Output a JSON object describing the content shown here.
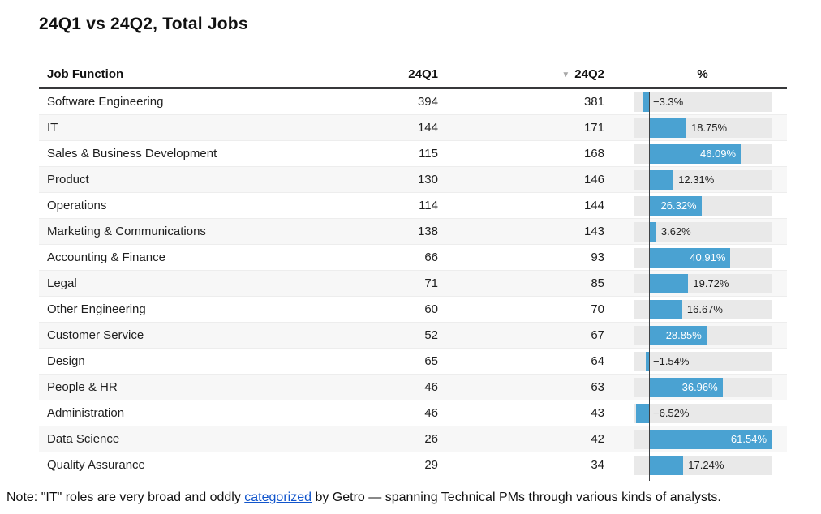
{
  "chart_data": {
    "type": "table",
    "title": "24Q1 vs 24Q2, Total Jobs",
    "columns": [
      "Job Function",
      "24Q1",
      "24Q2",
      "%"
    ],
    "sort": {
      "column": "24Q2",
      "direction": "desc",
      "icon": "▼"
    },
    "bar_column": {
      "axis_value": 0,
      "value_range": [
        -7.8,
        61.54
      ],
      "bar_color": "#4aa2d2",
      "track_color": "#e9e9e9",
      "description": "horizontal bar of % change, negative bars extend left of zero axis"
    },
    "rows": [
      {
        "job_function": "Software Engineering",
        "q1": 394,
        "q2": 381,
        "pct_change": -3.3,
        "pct_label": "−3.3%"
      },
      {
        "job_function": "IT",
        "q1": 144,
        "q2": 171,
        "pct_change": 18.75,
        "pct_label": "18.75%"
      },
      {
        "job_function": "Sales & Business Development",
        "q1": 115,
        "q2": 168,
        "pct_change": 46.09,
        "pct_label": "46.09%"
      },
      {
        "job_function": "Product",
        "q1": 130,
        "q2": 146,
        "pct_change": 12.31,
        "pct_label": "12.31%"
      },
      {
        "job_function": "Operations",
        "q1": 114,
        "q2": 144,
        "pct_change": 26.32,
        "pct_label": "26.32%"
      },
      {
        "job_function": "Marketing & Communications",
        "q1": 138,
        "q2": 143,
        "pct_change": 3.62,
        "pct_label": "3.62%"
      },
      {
        "job_function": "Accounting & Finance",
        "q1": 66,
        "q2": 93,
        "pct_change": 40.91,
        "pct_label": "40.91%"
      },
      {
        "job_function": "Legal",
        "q1": 71,
        "q2": 85,
        "pct_change": 19.72,
        "pct_label": "19.72%"
      },
      {
        "job_function": "Other Engineering",
        "q1": 60,
        "q2": 70,
        "pct_change": 16.67,
        "pct_label": "16.67%"
      },
      {
        "job_function": "Customer Service",
        "q1": 52,
        "q2": 67,
        "pct_change": 28.85,
        "pct_label": "28.85%"
      },
      {
        "job_function": "Design",
        "q1": 65,
        "q2": 64,
        "pct_change": -1.54,
        "pct_label": "−1.54%"
      },
      {
        "job_function": "People & HR",
        "q1": 46,
        "q2": 63,
        "pct_change": 36.96,
        "pct_label": "36.96%"
      },
      {
        "job_function": "Administration",
        "q1": 46,
        "q2": 43,
        "pct_change": -6.52,
        "pct_label": "−6.52%"
      },
      {
        "job_function": "Data Science",
        "q1": 26,
        "q2": 42,
        "pct_change": 61.54,
        "pct_label": "61.54%"
      },
      {
        "job_function": "Quality Assurance",
        "q1": 29,
        "q2": 34,
        "pct_change": 17.24,
        "pct_label": "17.24%"
      }
    ]
  },
  "note": {
    "prefix": "Note: \"IT\" roles are very broad and oddly ",
    "link_text": "categorized",
    "suffix": " by Getro — spanning Technical PMs through various kinds of analysts."
  },
  "colors": {
    "bar": "#4aa2d2",
    "track": "#e9e9e9",
    "stripe": "#f7f7f7",
    "header_rule": "#37383a",
    "link": "#1155cc",
    "sort_icon": "#a8a8a8"
  }
}
